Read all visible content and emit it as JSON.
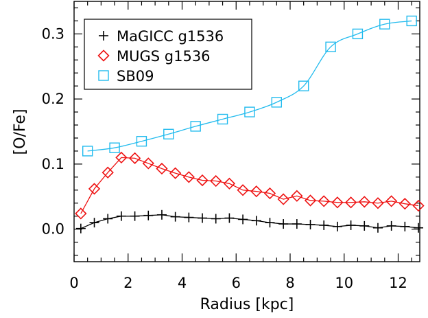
{
  "chart_data": {
    "type": "line",
    "title": "",
    "xlabel": "Radius [kpc]",
    "ylabel": "[O/Fe]",
    "xlim": [
      0,
      12.8
    ],
    "ylim": [
      -0.05,
      0.35
    ],
    "xticks": [
      0,
      2,
      4,
      6,
      8,
      10,
      12
    ],
    "yticks": [
      0.0,
      0.1,
      0.2,
      0.3
    ],
    "ytick_labels": [
      "0.0",
      "0.1",
      "0.2",
      "0.3"
    ],
    "grid": false,
    "legend_position": "top-left",
    "series": [
      {
        "name": "MaGICC g1536",
        "marker": "plus",
        "color": "#000000",
        "x": [
          0.25,
          0.75,
          1.25,
          1.75,
          2.25,
          2.75,
          3.25,
          3.75,
          4.25,
          4.75,
          5.25,
          5.75,
          6.25,
          6.75,
          7.25,
          7.75,
          8.25,
          8.75,
          9.25,
          9.75,
          10.25,
          10.75,
          11.25,
          11.75,
          12.25,
          12.75
        ],
        "y": [
          0.001,
          0.01,
          0.016,
          0.02,
          0.02,
          0.021,
          0.022,
          0.019,
          0.018,
          0.017,
          0.016,
          0.017,
          0.015,
          0.013,
          0.01,
          0.008,
          0.008,
          0.007,
          0.006,
          0.004,
          0.006,
          0.005,
          0.002,
          0.005,
          0.004,
          0.002
        ]
      },
      {
        "name": "MUGS g1536",
        "marker": "diamond",
        "color": "#ee1111",
        "x": [
          0.25,
          0.75,
          1.25,
          1.75,
          2.25,
          2.75,
          3.25,
          3.75,
          4.25,
          4.75,
          5.25,
          5.75,
          6.25,
          6.75,
          7.25,
          7.75,
          8.25,
          8.75,
          9.25,
          9.75,
          10.25,
          10.75,
          11.25,
          11.75,
          12.25,
          12.75
        ],
        "y": [
          0.024,
          0.062,
          0.087,
          0.11,
          0.109,
          0.101,
          0.093,
          0.086,
          0.08,
          0.075,
          0.074,
          0.07,
          0.06,
          0.058,
          0.055,
          0.046,
          0.051,
          0.044,
          0.043,
          0.041,
          0.041,
          0.042,
          0.04,
          0.043,
          0.039,
          0.036
        ]
      },
      {
        "name": "SB09",
        "marker": "square",
        "color": "#22bbee",
        "x": [
          0.5,
          1.5,
          2.5,
          3.5,
          4.5,
          5.5,
          6.5,
          7.5,
          8.5,
          9.5,
          10.5,
          11.5,
          12.5
        ],
        "y": [
          0.12,
          0.125,
          0.135,
          0.146,
          0.158,
          0.169,
          0.18,
          0.195,
          0.22,
          0.28,
          0.3,
          0.315,
          0.32
        ]
      }
    ]
  }
}
